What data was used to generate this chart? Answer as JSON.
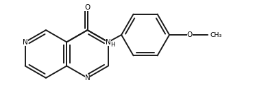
{
  "bg_color": "#ffffff",
  "bond_color": "#1a1a1a",
  "bond_width": 1.4,
  "font_size": 7.5,
  "fig_width": 3.88,
  "fig_height": 1.58,
  "dpi": 100,
  "xlim": [
    0.0,
    10.5
  ],
  "ylim": [
    0.3,
    4.5
  ]
}
